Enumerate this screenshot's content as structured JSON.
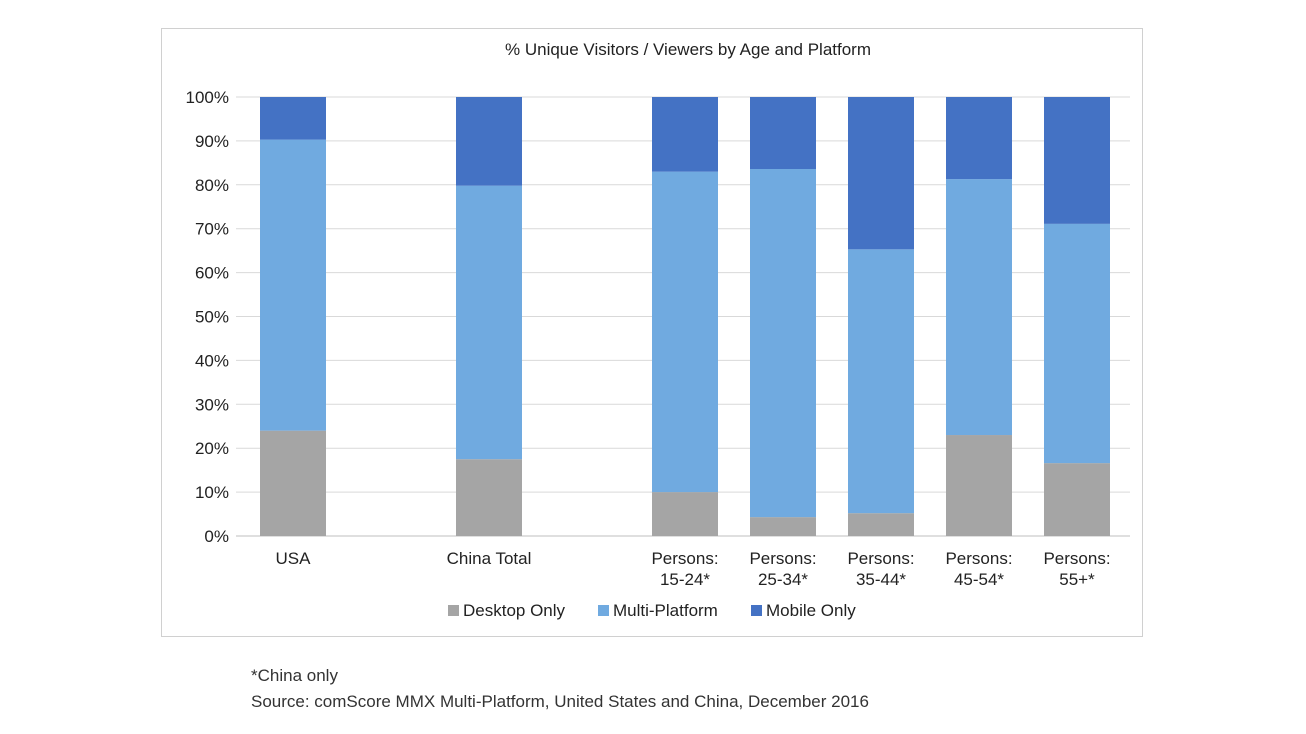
{
  "chart_data": {
    "type": "bar",
    "stacked": true,
    "title": "% Unique Visitors / Viewers by Age and Platform",
    "categories": [
      [
        "USA"
      ],
      [
        "China Total"
      ],
      [
        "Persons:",
        "15-24*"
      ],
      [
        "Persons:",
        "25-34*"
      ],
      [
        "Persons:",
        "35-44*"
      ],
      [
        "Persons:",
        "45-54*"
      ],
      [
        "Persons:",
        "55+*"
      ]
    ],
    "series": [
      {
        "name": "Desktop Only",
        "color": "#a5a5a5",
        "values": [
          24,
          17.5,
          10,
          4.3,
          5.2,
          23,
          16.6
        ]
      },
      {
        "name": "Multi-Platform",
        "color": "#70aae0",
        "values": [
          66.3,
          62.3,
          73,
          79.3,
          60.1,
          58.3,
          54.5
        ]
      },
      {
        "name": "Mobile Only",
        "color": "#4472c4",
        "values": [
          9.7,
          20.2,
          17,
          16.4,
          34.7,
          18.7,
          28.9
        ]
      }
    ],
    "ylim": [
      0,
      100
    ],
    "yticks": [
      "0%",
      "10%",
      "20%",
      "30%",
      "40%",
      "50%",
      "60%",
      "70%",
      "80%",
      "90%",
      "100%"
    ],
    "grid": true,
    "legend_position": "bottom"
  },
  "footnotes": {
    "china_only": "*China only",
    "source": "Source: comScore MMX Multi-Platform, United States and China, December 2016"
  }
}
